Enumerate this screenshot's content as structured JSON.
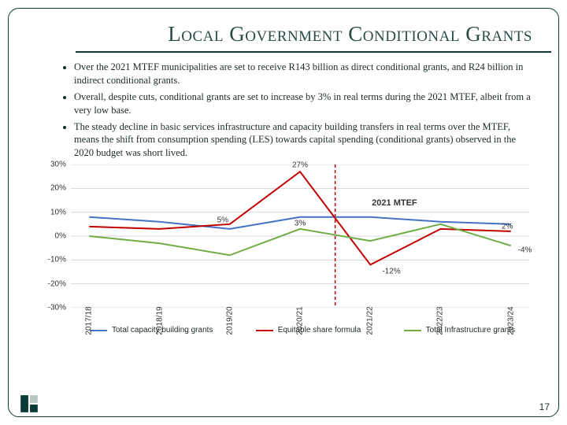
{
  "title": "Local Government Conditional Grants",
  "bullets": [
    "Over the 2021 MTEF municipalities are set to receive R143 billion as direct conditional grants, and R24 billion in indirect conditional grants.",
    "Overall, despite cuts, conditional grants are set to increase by 3% in real terms during the 2021 MTEF, albeit from a very low base.",
    "The steady decline in basic services infrastructure and capacity building transfers in real terms over the MTEF, means the shift from consumption spending (LES) towards capital spending (conditional grants) observed in the 2020 budget was short lived."
  ],
  "page_number": "17",
  "chart": {
    "type": "line",
    "ylim": [
      -30,
      30
    ],
    "ytick_step": 10,
    "y_ticks": [
      "30%",
      "20%",
      "10%",
      "0%",
      "-10%",
      "-20%",
      "-30%"
    ],
    "categories": [
      "2017/18",
      "2018/19",
      "2019/20",
      "2020/21",
      "2021/22",
      "2022/23",
      "2023/24"
    ],
    "divider_after_index": 3,
    "annot_text": "2021 MTEF",
    "background_color": "#ffffff",
    "grid_color": "#d8d8d8",
    "divider_color": "#c00000",
    "series": [
      {
        "name": "Total capacity building grants",
        "color": "#4472c4",
        "values": [
          8,
          6,
          3,
          8,
          8,
          6,
          5
        ]
      },
      {
        "name": "Equitable share formula",
        "color": "#c00000",
        "values": [
          4,
          3,
          5,
          27,
          -12,
          3,
          2
        ]
      },
      {
        "name": "Total Infrastructure grants",
        "color": "#70ad47",
        "values": [
          0,
          -3,
          -8,
          3,
          -2,
          5,
          -4
        ]
      }
    ],
    "data_labels": [
      {
        "text": "27%",
        "x_index": 3,
        "y_value": 27,
        "dy": -8
      },
      {
        "text": "5%",
        "x_index": 1.9,
        "y_value": 5,
        "dy": -5
      },
      {
        "text": "3%",
        "x_index": 3,
        "y_value": 3,
        "dy": -7
      },
      {
        "text": "-12%",
        "x_index": 4.3,
        "y_value": -12,
        "dy": 8
      },
      {
        "text": "2%",
        "x_index": 5.95,
        "y_value": 2,
        "dy": -6
      },
      {
        "text": "-4%",
        "x_index": 6.2,
        "y_value": -4,
        "dy": 6
      }
    ]
  }
}
